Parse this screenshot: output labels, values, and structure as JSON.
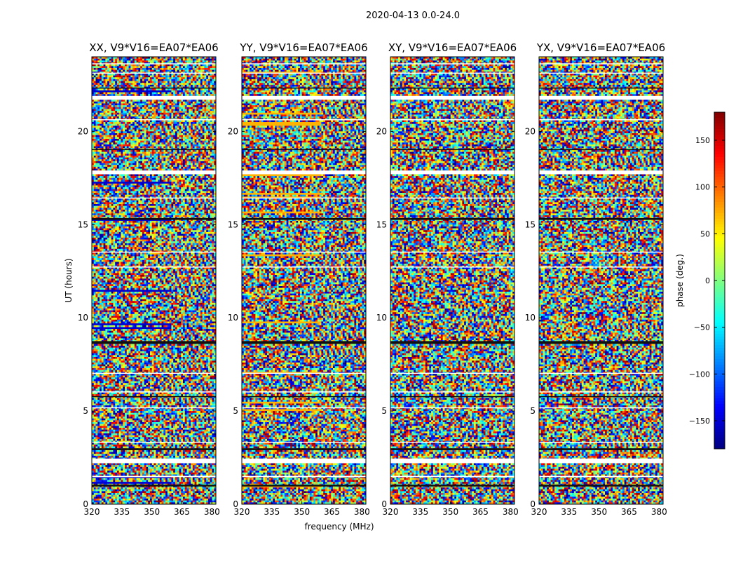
{
  "chart_data": {
    "type": "heatmap",
    "suptitle": "2020-04-13 0.0-24.0",
    "xlabel": "frequency (MHz)",
    "ylabel": "UT (hours)",
    "xlim": [
      320,
      382
    ],
    "ylim": [
      0,
      24
    ],
    "xticks": [
      320,
      335,
      350,
      365,
      380
    ],
    "yticks": [
      0,
      5,
      10,
      15,
      20
    ],
    "panels": [
      {
        "title": "XX, V9*V16=EA07*EA06",
        "pol": "XX"
      },
      {
        "title": "YY, V9*V16=EA07*EA06",
        "pol": "YY"
      },
      {
        "title": "XY, V9*V16=EA07*EA06",
        "pol": "XY"
      },
      {
        "title": "YX, V9*V16=EA07*EA06",
        "pol": "YX"
      }
    ],
    "colorbar": {
      "label": "phase (deg.)",
      "range": [
        -180,
        180
      ],
      "ticks": [
        -150,
        -100,
        -50,
        0,
        50,
        100,
        150
      ],
      "tick_labels": [
        "−150",
        "−100",
        "−50",
        "0",
        "50",
        "100",
        "150"
      ],
      "colormap": "jet"
    },
    "flagged_gaps_hours": [
      [
        0.95,
        1.05
      ],
      [
        1.45,
        1.52
      ],
      [
        2.2,
        2.45
      ],
      [
        2.9,
        3.0
      ],
      [
        3.3,
        3.35
      ],
      [
        5.15,
        5.2
      ],
      [
        5.75,
        5.8
      ],
      [
        6.0,
        6.05
      ],
      [
        7.0,
        7.05
      ],
      [
        8.6,
        8.75
      ],
      [
        12.7,
        12.75
      ],
      [
        13.5,
        13.55
      ],
      [
        15.25,
        15.35
      ],
      [
        16.4,
        16.45
      ],
      [
        17.7,
        17.9
      ],
      [
        19.0,
        19.05
      ],
      [
        20.6,
        20.65
      ],
      [
        21.7,
        21.9
      ],
      [
        22.3,
        22.35
      ],
      [
        23.1,
        23.15
      ],
      [
        23.6,
        23.65
      ]
    ]
  }
}
